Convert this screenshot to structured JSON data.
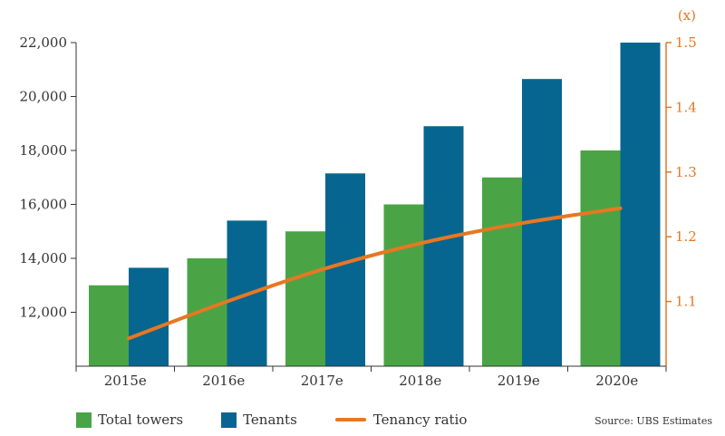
{
  "chart_data": {
    "type": "bar",
    "categories": [
      "2015e",
      "2016e",
      "2017e",
      "2018e",
      "2019e",
      "2020e"
    ],
    "series": [
      {
        "name": "Total towers",
        "type": "bar",
        "axis": "left",
        "color": "#4aa446",
        "values": [
          13000,
          14000,
          15000,
          16000,
          17000,
          18000
        ]
      },
      {
        "name": "Tenants",
        "type": "bar",
        "axis": "left",
        "color": "#07668f",
        "values": [
          13650,
          15400,
          17150,
          18900,
          20650,
          22000
        ]
      },
      {
        "name": "Tenancy ratio",
        "type": "line",
        "axis": "right",
        "color": "#e87722",
        "values": [
          1.043,
          1.1,
          1.151,
          1.191,
          1.221,
          1.244
        ]
      }
    ],
    "y_left": {
      "ticks": [
        "12,000",
        "14,000",
        "16,000",
        "18,000",
        "20,000",
        "22,000"
      ],
      "range": [
        10000,
        22000
      ]
    },
    "y_right": {
      "label": "(x)",
      "ticks": [
        "1.1",
        "1.2",
        "1.3",
        "1.4",
        "1.5"
      ],
      "range": [
        1.0,
        1.5
      ]
    },
    "grid": false,
    "legend_position": "bottom-left",
    "source": "Source: UBS Estimates"
  }
}
